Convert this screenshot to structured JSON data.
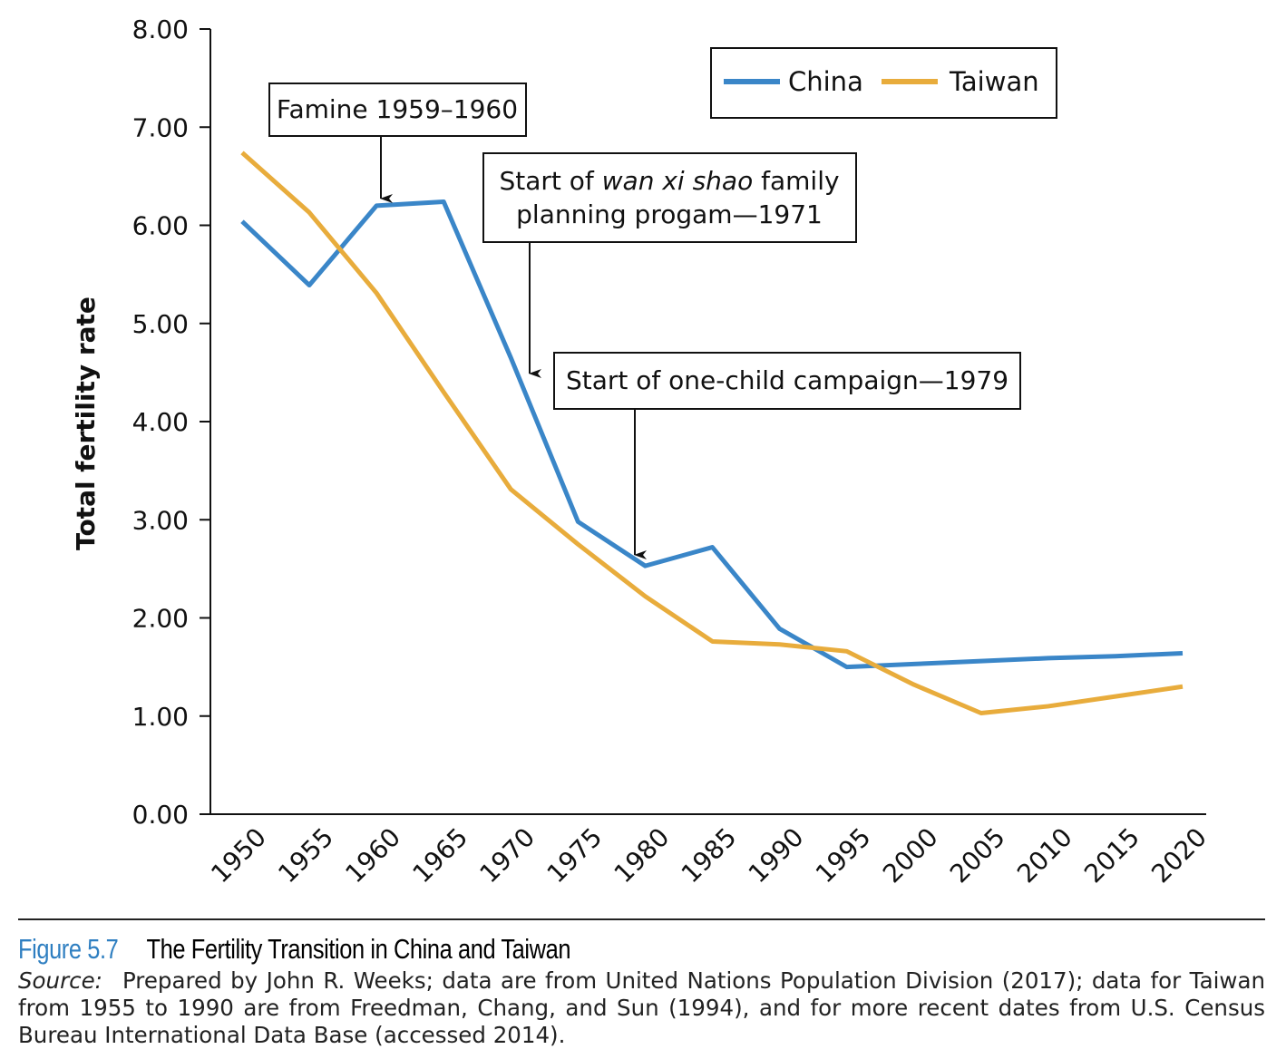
{
  "chart_data": {
    "type": "line",
    "ylabel": "Total fertility rate",
    "ylim": [
      0,
      8
    ],
    "yticks": [
      "0.00",
      "1.00",
      "2.00",
      "3.00",
      "4.00",
      "5.00",
      "6.00",
      "7.00",
      "8.00"
    ],
    "x": [
      1950,
      1955,
      1960,
      1965,
      1970,
      1975,
      1980,
      1985,
      1990,
      1995,
      2000,
      2005,
      2010,
      2015,
      2020
    ],
    "xticks": [
      "1950",
      "1955",
      "1960",
      "1965",
      "1970",
      "1975",
      "1980",
      "1985",
      "1990",
      "1995",
      "2000",
      "2005",
      "2010",
      "2015",
      "2020"
    ],
    "legend_position": "top-right",
    "series": [
      {
        "name": "China",
        "color": "#3a86c8",
        "values": [
          6.04,
          5.39,
          6.2,
          6.24,
          4.65,
          2.98,
          2.53,
          2.72,
          1.89,
          1.5,
          1.53,
          1.56,
          1.59,
          1.61,
          1.64
        ]
      },
      {
        "name": "Taiwan",
        "color": "#e8ac3c",
        "values": [
          6.74,
          6.13,
          5.31,
          4.3,
          3.31,
          2.75,
          2.22,
          1.76,
          1.73,
          1.66,
          1.32,
          1.03,
          1.1,
          1.2,
          1.3
        ]
      }
    ],
    "annotations": [
      {
        "text": "Famine 1959–1960",
        "x": 1960
      },
      {
        "text_parts": [
          "Start of ",
          "wan xi shao",
          " family",
          "planning progam—1971"
        ],
        "x": 1971
      },
      {
        "text": "Start of one-child campaign—1979",
        "x": 1979
      }
    ]
  },
  "caption": {
    "figure_number": "Figure 5.7",
    "title": "The Fertility Transition in China and Taiwan",
    "source_label": "Source:",
    "source_text": "Prepared by John R. Weeks; data are from United Nations Population Division (2017); data for Taiwan from 1955 to 1990 are from Freedman, Chang, and Sun (1994), and for more recent dates from U.S. Census Bureau International Data Base (accessed 2014)."
  }
}
